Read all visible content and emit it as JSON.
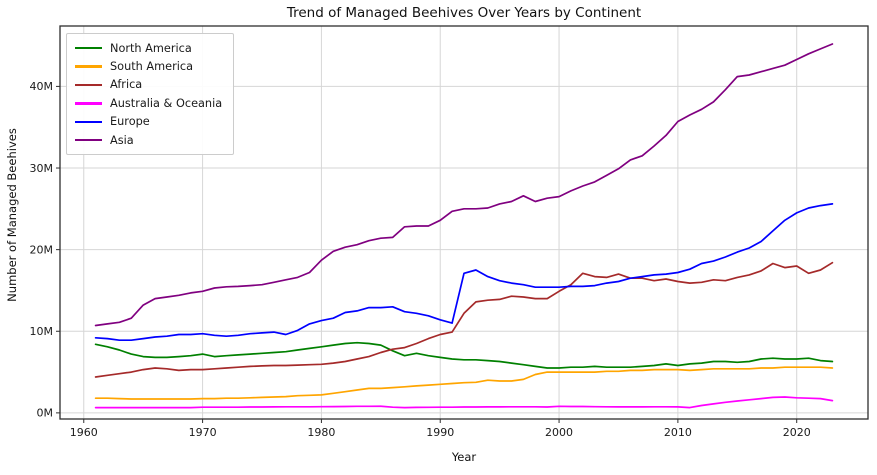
{
  "chart_data": {
    "type": "line",
    "title": "Trend of Managed Beehives Over Years by Continent",
    "xlabel": "Year",
    "ylabel": "Number of Managed Beehives",
    "grid": true,
    "legend_position": "upper left",
    "xlim": [
      1958,
      2026
    ],
    "ylim": [
      -0.75,
      47.4
    ],
    "xticks": {
      "values": [
        1960,
        1970,
        1980,
        1990,
        2000,
        2010,
        2020
      ],
      "labels": [
        "1960",
        "1970",
        "1980",
        "1990",
        "2000",
        "2010",
        "2020"
      ]
    },
    "yticks": {
      "values": [
        0,
        10,
        20,
        30,
        40
      ],
      "labels": [
        "0M",
        "10M",
        "20M",
        "30M",
        "40M"
      ]
    },
    "unit": "millions of beehives",
    "x": [
      1961,
      1962,
      1963,
      1964,
      1965,
      1966,
      1967,
      1968,
      1969,
      1970,
      1971,
      1972,
      1973,
      1974,
      1975,
      1976,
      1977,
      1978,
      1979,
      1980,
      1981,
      1982,
      1983,
      1984,
      1985,
      1986,
      1987,
      1988,
      1989,
      1990,
      1991,
      1992,
      1993,
      1994,
      1995,
      1996,
      1997,
      1998,
      1999,
      2000,
      2001,
      2002,
      2003,
      2004,
      2005,
      2006,
      2007,
      2008,
      2009,
      2010,
      2011,
      2012,
      2013,
      2014,
      2015,
      2016,
      2017,
      2018,
      2019,
      2020,
      2021,
      2022,
      2023
    ],
    "series": [
      {
        "name": "North America",
        "color": "#008000",
        "values": [
          8.4,
          8.1,
          7.7,
          7.2,
          6.9,
          6.8,
          6.8,
          6.9,
          7.0,
          7.2,
          6.9,
          7.0,
          7.1,
          7.2,
          7.3,
          7.4,
          7.5,
          7.7,
          7.9,
          8.1,
          8.3,
          8.5,
          8.6,
          8.5,
          8.3,
          7.6,
          7.0,
          7.3,
          7.0,
          6.8,
          6.6,
          6.5,
          6.5,
          6.4,
          6.3,
          6.1,
          5.9,
          5.7,
          5.5,
          5.5,
          5.6,
          5.6,
          5.7,
          5.6,
          5.6,
          5.6,
          5.7,
          5.8,
          6.0,
          5.8,
          6.0,
          6.1,
          6.3,
          6.3,
          6.2,
          6.3,
          6.6,
          6.7,
          6.6,
          6.6,
          6.7,
          6.4,
          6.3
        ]
      },
      {
        "name": "South America",
        "color": "#FFA500",
        "values": [
          1.8,
          1.8,
          1.75,
          1.7,
          1.7,
          1.7,
          1.7,
          1.7,
          1.7,
          1.75,
          1.75,
          1.8,
          1.8,
          1.85,
          1.9,
          1.95,
          2.0,
          2.1,
          2.15,
          2.2,
          2.4,
          2.6,
          2.8,
          3.0,
          3.0,
          3.1,
          3.2,
          3.3,
          3.4,
          3.5,
          3.6,
          3.7,
          3.75,
          4.0,
          3.9,
          3.9,
          4.1,
          4.7,
          5.0,
          5.0,
          5.0,
          5.0,
          5.0,
          5.1,
          5.1,
          5.2,
          5.2,
          5.3,
          5.3,
          5.3,
          5.2,
          5.3,
          5.4,
          5.4,
          5.4,
          5.4,
          5.5,
          5.5,
          5.6,
          5.6,
          5.6,
          5.6,
          5.5
        ]
      },
      {
        "name": "Africa",
        "color": "#A52A2A",
        "values": [
          4.4,
          4.6,
          4.8,
          5.0,
          5.3,
          5.5,
          5.4,
          5.2,
          5.3,
          5.3,
          5.4,
          5.5,
          5.6,
          5.7,
          5.75,
          5.8,
          5.8,
          5.85,
          5.9,
          5.95,
          6.1,
          6.3,
          6.6,
          6.9,
          7.4,
          7.8,
          8.0,
          8.5,
          9.1,
          9.6,
          9.9,
          12.2,
          13.6,
          13.8,
          13.9,
          14.3,
          14.2,
          14.0,
          14.0,
          14.9,
          15.7,
          17.1,
          16.7,
          16.6,
          17.0,
          16.5,
          16.5,
          16.2,
          16.4,
          16.1,
          15.9,
          16.0,
          16.3,
          16.2,
          16.6,
          16.9,
          17.4,
          18.3,
          17.8,
          18.0,
          17.1,
          17.5,
          18.4
        ]
      },
      {
        "name": "Australia & Oceania",
        "color": "#FF00FF",
        "values": [
          0.65,
          0.65,
          0.65,
          0.65,
          0.65,
          0.65,
          0.65,
          0.65,
          0.65,
          0.7,
          0.7,
          0.7,
          0.7,
          0.72,
          0.72,
          0.73,
          0.74,
          0.75,
          0.75,
          0.76,
          0.77,
          0.78,
          0.8,
          0.8,
          0.82,
          0.7,
          0.65,
          0.67,
          0.68,
          0.7,
          0.7,
          0.72,
          0.72,
          0.73,
          0.73,
          0.74,
          0.75,
          0.75,
          0.72,
          0.8,
          0.78,
          0.78,
          0.76,
          0.75,
          0.73,
          0.73,
          0.73,
          0.74,
          0.75,
          0.73,
          0.65,
          0.9,
          1.1,
          1.3,
          1.45,
          1.6,
          1.75,
          1.9,
          1.95,
          1.85,
          1.8,
          1.75,
          1.5
        ]
      },
      {
        "name": "Europe",
        "color": "#0000FF",
        "values": [
          9.2,
          9.1,
          8.9,
          8.9,
          9.1,
          9.3,
          9.4,
          9.6,
          9.6,
          9.7,
          9.5,
          9.4,
          9.5,
          9.7,
          9.8,
          9.9,
          9.6,
          10.1,
          10.9,
          11.3,
          11.6,
          12.3,
          12.5,
          12.9,
          12.9,
          13.0,
          12.4,
          12.2,
          11.9,
          11.4,
          11.0,
          17.1,
          17.5,
          16.7,
          16.2,
          15.9,
          15.7,
          15.4,
          15.4,
          15.4,
          15.5,
          15.5,
          15.6,
          15.9,
          16.1,
          16.5,
          16.7,
          16.9,
          17.0,
          17.2,
          17.6,
          18.3,
          18.6,
          19.1,
          19.7,
          20.2,
          21.0,
          22.3,
          23.6,
          24.5,
          25.1,
          25.4,
          25.6
        ]
      },
      {
        "name": "Asia",
        "color": "#800080",
        "values": [
          10.7,
          10.9,
          11.1,
          11.6,
          13.2,
          14.0,
          14.2,
          14.4,
          14.7,
          14.9,
          15.3,
          15.45,
          15.5,
          15.6,
          15.7,
          16.0,
          16.3,
          16.6,
          17.2,
          18.7,
          19.8,
          20.3,
          20.6,
          21.1,
          21.4,
          21.5,
          22.8,
          22.9,
          22.9,
          23.6,
          24.7,
          25.0,
          25.0,
          25.1,
          25.6,
          25.9,
          26.6,
          25.9,
          26.3,
          26.5,
          27.2,
          27.8,
          28.3,
          29.1,
          29.9,
          31.0,
          31.5,
          32.7,
          34.0,
          35.7,
          36.5,
          37.2,
          38.1,
          39.6,
          41.2,
          41.4,
          41.8,
          42.2,
          42.6,
          43.3,
          44.0,
          44.6,
          45.2
        ]
      }
    ]
  }
}
